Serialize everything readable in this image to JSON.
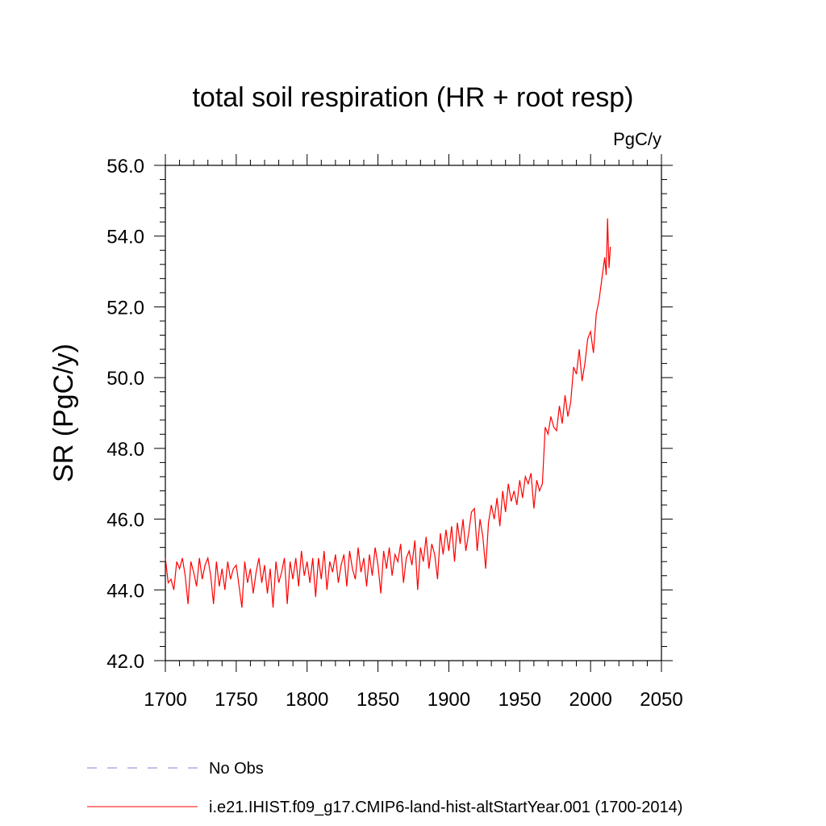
{
  "chart_data": {
    "type": "line",
    "title": "total soil respiration (HR + root resp)",
    "units": "PgC/y",
    "xlabel": "",
    "ylabel": "SR  (PgC/y)",
    "xlim": [
      1700,
      2050
    ],
    "ylim": [
      42,
      56
    ],
    "xticks": [
      1700,
      1750,
      1800,
      1850,
      1900,
      1950,
      2000,
      2050
    ],
    "xtick_labels": [
      "1700",
      "1750",
      "1800",
      "1850",
      "1900",
      "1950",
      "2000",
      "2050"
    ],
    "yticks": [
      42,
      44,
      46,
      48,
      50,
      52,
      54,
      56
    ],
    "ytick_labels": [
      "42.0",
      "44.0",
      "46.0",
      "48.0",
      "50.0",
      "52.0",
      "54.0",
      "56.0"
    ],
    "grid": false,
    "legend_position": "bottom",
    "series": [
      {
        "name": "i.e21.IHIST.f09_g17.CMIP6-land-hist-altStartYear.001 (1700-2014)",
        "color": "#ff0000",
        "style": "solid",
        "x": [
          1700,
          1702,
          1704,
          1706,
          1708,
          1710,
          1712,
          1714,
          1716,
          1718,
          1720,
          1722,
          1724,
          1726,
          1728,
          1730,
          1732,
          1734,
          1736,
          1738,
          1740,
          1742,
          1744,
          1746,
          1748,
          1750,
          1752,
          1754,
          1756,
          1758,
          1760,
          1762,
          1764,
          1766,
          1768,
          1770,
          1772,
          1774,
          1776,
          1778,
          1780,
          1782,
          1784,
          1786,
          1788,
          1790,
          1792,
          1794,
          1796,
          1798,
          1800,
          1802,
          1804,
          1806,
          1808,
          1810,
          1812,
          1814,
          1816,
          1818,
          1820,
          1822,
          1824,
          1826,
          1828,
          1830,
          1832,
          1834,
          1836,
          1838,
          1840,
          1842,
          1844,
          1846,
          1848,
          1850,
          1852,
          1854,
          1856,
          1858,
          1860,
          1862,
          1864,
          1866,
          1868,
          1870,
          1872,
          1874,
          1876,
          1878,
          1880,
          1882,
          1884,
          1886,
          1888,
          1890,
          1892,
          1894,
          1896,
          1898,
          1900,
          1902,
          1904,
          1906,
          1908,
          1910,
          1912,
          1914,
          1916,
          1918,
          1920,
          1922,
          1924,
          1926,
          1928,
          1930,
          1932,
          1934,
          1936,
          1938,
          1940,
          1942,
          1944,
          1946,
          1948,
          1950,
          1952,
          1954,
          1956,
          1958,
          1960,
          1962,
          1964,
          1966,
          1968,
          1970,
          1972,
          1974,
          1976,
          1978,
          1980,
          1982,
          1984,
          1986,
          1988,
          1990,
          1992,
          1994,
          1996,
          1998,
          2000,
          2002,
          2004,
          2006,
          2008,
          2010,
          2011,
          2012,
          2013,
          2014
        ],
        "y": [
          44.9,
          44.2,
          44.3,
          44.0,
          44.8,
          44.6,
          44.9,
          44.4,
          43.6,
          44.8,
          44.5,
          44.1,
          44.9,
          44.3,
          44.7,
          44.9,
          44.4,
          43.6,
          44.8,
          44.1,
          44.6,
          44.0,
          44.8,
          44.3,
          44.6,
          44.7,
          44.1,
          43.5,
          44.8,
          44.2,
          44.6,
          43.9,
          44.5,
          44.9,
          44.2,
          44.7,
          43.9,
          44.6,
          43.5,
          44.8,
          44.2,
          44.5,
          44.9,
          43.6,
          44.8,
          44.3,
          44.9,
          44.1,
          45.1,
          44.4,
          44.8,
          44.2,
          44.9,
          43.8,
          44.9,
          44.3,
          45.1,
          44.0,
          44.8,
          44.5,
          45.0,
          44.2,
          44.7,
          45.0,
          44.1,
          45.1,
          44.6,
          44.3,
          45.2,
          44.5,
          44.9,
          44.1,
          45.0,
          44.4,
          45.2,
          44.7,
          43.9,
          45.1,
          44.6,
          45.2,
          44.4,
          45.0,
          44.8,
          45.3,
          44.2,
          44.9,
          45.1,
          44.7,
          45.4,
          44.0,
          45.2,
          44.8,
          45.5,
          44.6,
          45.3,
          45.0,
          44.3,
          45.6,
          45.0,
          45.7,
          45.1,
          45.8,
          44.8,
          45.9,
          45.3,
          46.0,
          45.1,
          45.6,
          46.2,
          46.3,
          45.1,
          46.0,
          45.5,
          44.6,
          45.9,
          46.4,
          46.0,
          46.6,
          45.8,
          46.8,
          46.2,
          47.0,
          46.5,
          46.8,
          46.4,
          47.1,
          46.6,
          47.2,
          47.0,
          47.3,
          46.3,
          47.1,
          46.8,
          47.0,
          48.6,
          48.4,
          48.9,
          48.6,
          48.5,
          49.2,
          48.7,
          49.5,
          48.9,
          49.3,
          50.3,
          50.1,
          50.8,
          49.9,
          50.4,
          51.1,
          51.3,
          50.7,
          51.8,
          52.2,
          52.8,
          53.4,
          52.9,
          54.5,
          53.1,
          53.7
        ]
      },
      {
        "name": "No Obs",
        "color": "#8a7fd0",
        "style": "dashed",
        "x": [],
        "y": []
      }
    ]
  }
}
